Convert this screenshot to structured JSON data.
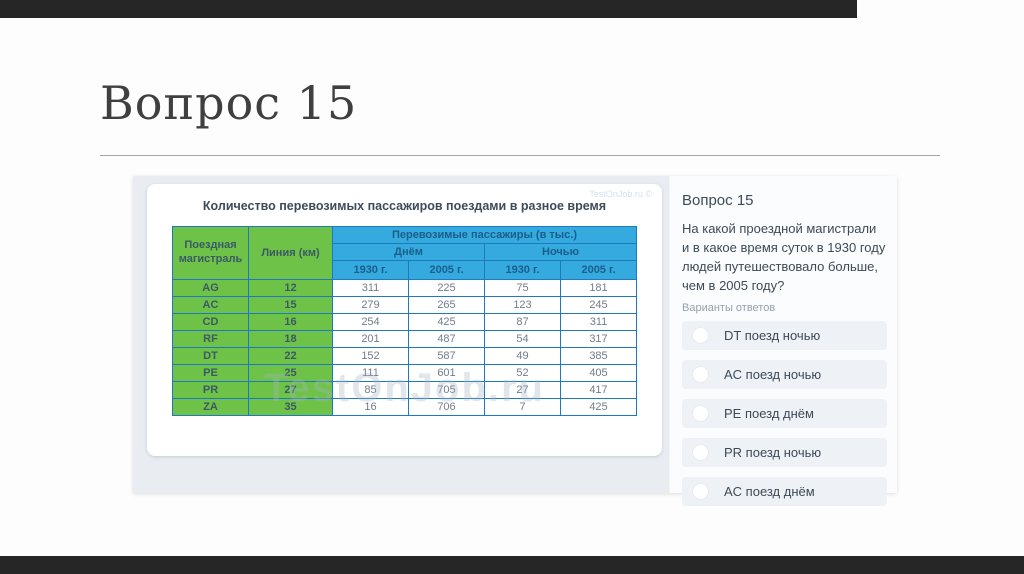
{
  "page": {
    "slide_title": "Вопрос 15"
  },
  "table_card": {
    "title": "Количество перевозимых пассажиров поездами в разное время",
    "watermark_corner": "TestOnJob.ru ©",
    "watermark_center": "TestOnJob.ru"
  },
  "table": {
    "headers": {
      "magistral": "Поездная магистраль",
      "line_km": "Линия (км)",
      "passengers": "Перевозимые пассажиры (в тыс.)",
      "day": "Днём",
      "night": "Ночью",
      "y1930_day": "1930 г.",
      "y2005_day": "2005 г.",
      "y1930_night": "1930 г.",
      "y2005_night": "2005 г."
    },
    "rows": [
      {
        "magistral": "AG",
        "km": "12",
        "day_1930": "311",
        "day_2005": "225",
        "night_1930": "75",
        "night_2005": "181"
      },
      {
        "magistral": "AC",
        "km": "15",
        "day_1930": "279",
        "day_2005": "265",
        "night_1930": "123",
        "night_2005": "245"
      },
      {
        "magistral": "CD",
        "km": "16",
        "day_1930": "254",
        "day_2005": "425",
        "night_1930": "87",
        "night_2005": "311"
      },
      {
        "magistral": "RF",
        "km": "18",
        "day_1930": "201",
        "day_2005": "487",
        "night_1930": "54",
        "night_2005": "317"
      },
      {
        "magistral": "DT",
        "km": "22",
        "day_1930": "152",
        "day_2005": "587",
        "night_1930": "49",
        "night_2005": "385"
      },
      {
        "magistral": "PE",
        "km": "25",
        "day_1930": "111",
        "day_2005": "601",
        "night_1930": "52",
        "night_2005": "405"
      },
      {
        "magistral": "PR",
        "km": "27",
        "day_1930": "85",
        "day_2005": "705",
        "night_1930": "27",
        "night_2005": "417"
      },
      {
        "magistral": "ZA",
        "km": "35",
        "day_1930": "16",
        "day_2005": "706",
        "night_1930": "7",
        "night_2005": "425"
      }
    ]
  },
  "question_panel": {
    "title": "Вопрос 15",
    "text": "На какой проездной магистрали и в какое время суток в 1930 году людей путешествовало больше, чем в 2005 году?",
    "options_label": "Варианты ответов",
    "options": [
      {
        "label": "DT поезд ночью"
      },
      {
        "label": "AC поезд ночью"
      },
      {
        "label": "PE поезд днём"
      },
      {
        "label": "PR поезд ночью"
      },
      {
        "label": "AC поезд днём"
      }
    ]
  },
  "colors": {
    "green_cell": "#6dc247",
    "blue_header": "#35aade",
    "table_border": "#1e79c0",
    "bar": "#262626"
  }
}
